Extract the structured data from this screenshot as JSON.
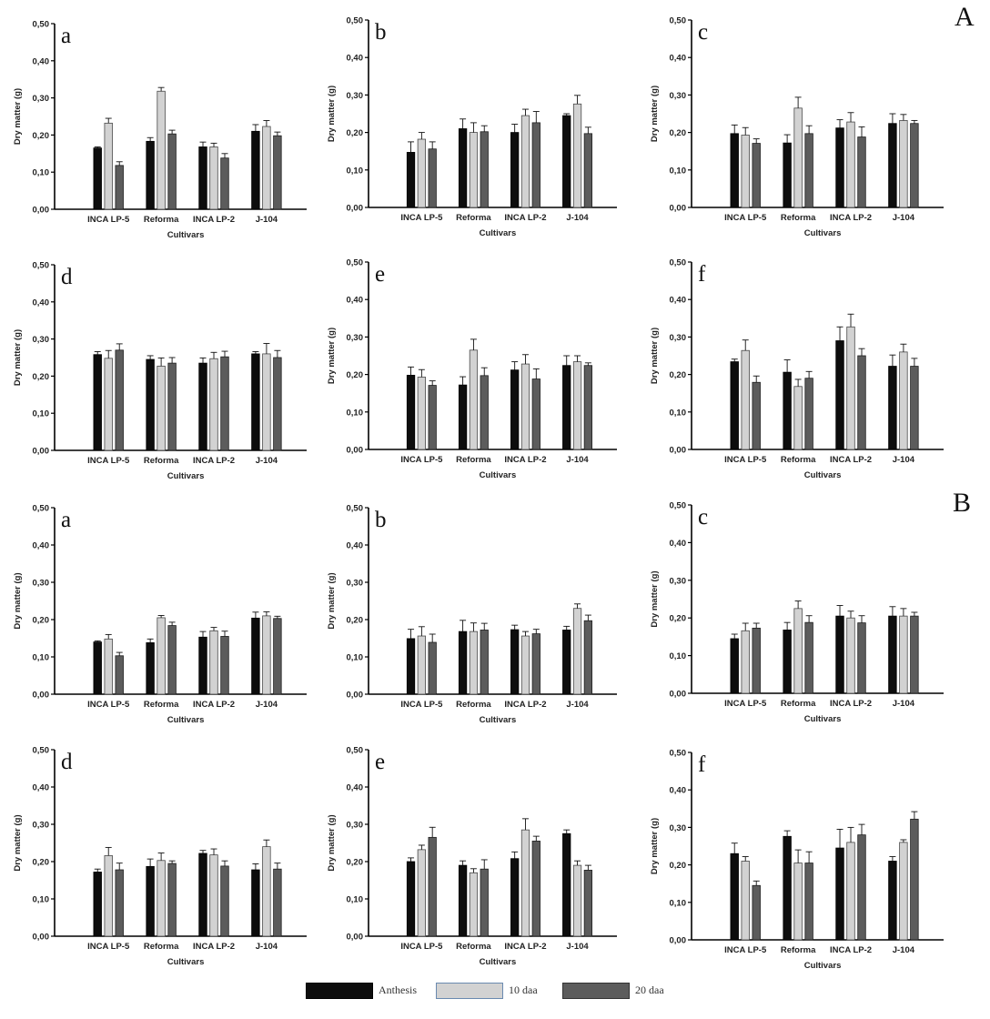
{
  "section_labels": [
    "A",
    "B"
  ],
  "legend": [
    {
      "label": "Anthesis",
      "color": "#0d0d0d",
      "edge": "#000000"
    },
    {
      "label": "10 daa",
      "color": "#d2d2d2",
      "edge": "#555555"
    },
    {
      "label": "20 daa",
      "color": "#5c5c5c",
      "edge": "#222222"
    }
  ],
  "axis_common": {
    "ylabel": "Dry matter (g)",
    "xlabel": "Cultivars",
    "categories": [
      "INCA LP-5",
      "Reforma",
      "INCA  LP-2",
      "J-104"
    ],
    "yticks": [
      "0,00",
      "0,10",
      "0,20",
      "0,30",
      "0,40",
      "0,50"
    ],
    "ylim": [
      0,
      0.5
    ]
  },
  "chart_data": [
    {
      "type": "bar",
      "section": "A",
      "panel": "a",
      "series": [
        {
          "name": "Anthesis",
          "values": [
            0.165,
            0.183,
            0.168,
            0.21
          ],
          "errors": [
            0.003,
            0.01,
            0.013,
            0.018
          ]
        },
        {
          "name": "10 daa",
          "values": [
            0.232,
            0.318,
            0.168,
            0.223
          ],
          "errors": [
            0.013,
            0.01,
            0.01,
            0.016
          ]
        },
        {
          "name": "20 daa",
          "values": [
            0.118,
            0.203,
            0.138,
            0.198
          ],
          "errors": [
            0.01,
            0.01,
            0.012,
            0.01
          ]
        }
      ]
    },
    {
      "type": "bar",
      "section": "A",
      "panel": "b",
      "series": [
        {
          "name": "Anthesis",
          "values": [
            0.147,
            0.21,
            0.2,
            0.245
          ],
          "errors": [
            0.028,
            0.026,
            0.022,
            0.005
          ]
        },
        {
          "name": "10 daa",
          "values": [
            0.182,
            0.2,
            0.245,
            0.276
          ],
          "errors": [
            0.018,
            0.026,
            0.017,
            0.023
          ]
        },
        {
          "name": "20 daa",
          "values": [
            0.156,
            0.202,
            0.226,
            0.197
          ],
          "errors": [
            0.019,
            0.016,
            0.03,
            0.017
          ]
        }
      ]
    },
    {
      "type": "bar",
      "section": "A",
      "panel": "c",
      "series": [
        {
          "name": "Anthesis",
          "values": [
            0.197,
            0.172,
            0.212,
            0.224
          ],
          "errors": [
            0.023,
            0.022,
            0.022,
            0.026
          ]
        },
        {
          "name": "10 daa",
          "values": [
            0.193,
            0.265,
            0.228,
            0.232
          ],
          "errors": [
            0.02,
            0.029,
            0.025,
            0.016
          ]
        },
        {
          "name": "20 daa",
          "values": [
            0.171,
            0.197,
            0.188,
            0.224
          ],
          "errors": [
            0.012,
            0.021,
            0.027,
            0.008
          ]
        }
      ]
    },
    {
      "type": "bar",
      "section": "A",
      "panel": "d",
      "series": [
        {
          "name": "Anthesis",
          "values": [
            0.258,
            0.245,
            0.235,
            0.26
          ],
          "errors": [
            0.008,
            0.01,
            0.014,
            0.006
          ]
        },
        {
          "name": "10 daa",
          "values": [
            0.248,
            0.227,
            0.247,
            0.26
          ],
          "errors": [
            0.021,
            0.022,
            0.017,
            0.028
          ]
        },
        {
          "name": "20 daa",
          "values": [
            0.27,
            0.235,
            0.252,
            0.25
          ],
          "errors": [
            0.017,
            0.015,
            0.015,
            0.019
          ]
        }
      ]
    },
    {
      "type": "bar",
      "section": "A",
      "panel": "e",
      "series": [
        {
          "name": "Anthesis",
          "values": [
            0.198,
            0.172,
            0.212,
            0.224
          ],
          "errors": [
            0.022,
            0.022,
            0.022,
            0.026
          ]
        },
        {
          "name": "10 daa",
          "values": [
            0.193,
            0.265,
            0.228,
            0.234
          ],
          "errors": [
            0.02,
            0.029,
            0.025,
            0.016
          ]
        },
        {
          "name": "20 daa",
          "values": [
            0.171,
            0.197,
            0.188,
            0.224
          ],
          "errors": [
            0.012,
            0.021,
            0.027,
            0.007
          ]
        }
      ]
    },
    {
      "type": "bar",
      "section": "A",
      "panel": "f",
      "series": [
        {
          "name": "Anthesis",
          "values": [
            0.234,
            0.206,
            0.29,
            0.222
          ],
          "errors": [
            0.007,
            0.033,
            0.037,
            0.03
          ]
        },
        {
          "name": "10 daa",
          "values": [
            0.264,
            0.168,
            0.327,
            0.26
          ],
          "errors": [
            0.028,
            0.019,
            0.034,
            0.021
          ]
        },
        {
          "name": "20 daa",
          "values": [
            0.179,
            0.19,
            0.25,
            0.222
          ],
          "errors": [
            0.017,
            0.018,
            0.019,
            0.021
          ]
        }
      ]
    },
    {
      "type": "bar",
      "section": "B",
      "panel": "a",
      "series": [
        {
          "name": "Anthesis",
          "values": [
            0.14,
            0.138,
            0.153,
            0.204
          ],
          "errors": [
            0.003,
            0.01,
            0.015,
            0.016
          ]
        },
        {
          "name": "10 daa",
          "values": [
            0.148,
            0.205,
            0.17,
            0.21
          ],
          "errors": [
            0.012,
            0.006,
            0.009,
            0.011
          ]
        },
        {
          "name": "20 daa",
          "values": [
            0.103,
            0.184,
            0.155,
            0.203
          ],
          "errors": [
            0.009,
            0.009,
            0.014,
            0.006
          ]
        }
      ]
    },
    {
      "type": "bar",
      "section": "B",
      "panel": "b",
      "series": [
        {
          "name": "Anthesis",
          "values": [
            0.149,
            0.168,
            0.173,
            0.172
          ],
          "errors": [
            0.025,
            0.03,
            0.012,
            0.01
          ]
        },
        {
          "name": "10 daa",
          "values": [
            0.156,
            0.168,
            0.156,
            0.23
          ],
          "errors": [
            0.025,
            0.023,
            0.012,
            0.012
          ]
        },
        {
          "name": "20 daa",
          "values": [
            0.139,
            0.172,
            0.162,
            0.197
          ],
          "errors": [
            0.022,
            0.018,
            0.012,
            0.015
          ]
        }
      ]
    },
    {
      "type": "bar",
      "section": "B",
      "panel": "c",
      "series": [
        {
          "name": "Anthesis",
          "values": [
            0.145,
            0.168,
            0.205,
            0.205
          ],
          "errors": [
            0.012,
            0.02,
            0.028,
            0.025
          ]
        },
        {
          "name": "10 daa",
          "values": [
            0.166,
            0.225,
            0.2,
            0.205
          ],
          "errors": [
            0.02,
            0.02,
            0.018,
            0.02
          ]
        },
        {
          "name": "20 daa",
          "values": [
            0.173,
            0.188,
            0.187,
            0.205
          ],
          "errors": [
            0.013,
            0.018,
            0.019,
            0.01
          ]
        }
      ]
    },
    {
      "type": "bar",
      "section": "B",
      "panel": "d",
      "series": [
        {
          "name": "Anthesis",
          "values": [
            0.172,
            0.187,
            0.222,
            0.178
          ],
          "errors": [
            0.008,
            0.02,
            0.008,
            0.016
          ]
        },
        {
          "name": "10 daa",
          "values": [
            0.216,
            0.203,
            0.218,
            0.24
          ],
          "errors": [
            0.022,
            0.02,
            0.016,
            0.018
          ]
        },
        {
          "name": "20 daa",
          "values": [
            0.178,
            0.195,
            0.188,
            0.18
          ],
          "errors": [
            0.018,
            0.007,
            0.014,
            0.016
          ]
        }
      ]
    },
    {
      "type": "bar",
      "section": "B",
      "panel": "e",
      "series": [
        {
          "name": "Anthesis",
          "values": [
            0.2,
            0.19,
            0.208,
            0.275
          ],
          "errors": [
            0.01,
            0.012,
            0.018,
            0.01
          ]
        },
        {
          "name": "10 daa",
          "values": [
            0.232,
            0.17,
            0.285,
            0.19
          ],
          "errors": [
            0.012,
            0.011,
            0.03,
            0.012
          ]
        },
        {
          "name": "20 daa",
          "values": [
            0.265,
            0.18,
            0.255,
            0.177
          ],
          "errors": [
            0.027,
            0.025,
            0.013,
            0.013
          ]
        }
      ]
    },
    {
      "type": "bar",
      "section": "B",
      "panel": "f",
      "series": [
        {
          "name": "Anthesis",
          "values": [
            0.23,
            0.276,
            0.245,
            0.21
          ],
          "errors": [
            0.028,
            0.015,
            0.05,
            0.012
          ]
        },
        {
          "name": "10 daa",
          "values": [
            0.21,
            0.205,
            0.26,
            0.26
          ],
          "errors": [
            0.012,
            0.035,
            0.04,
            0.007
          ]
        },
        {
          "name": "20 daa",
          "values": [
            0.145,
            0.205,
            0.28,
            0.322
          ],
          "errors": [
            0.012,
            0.03,
            0.028,
            0.02
          ]
        }
      ]
    }
  ]
}
